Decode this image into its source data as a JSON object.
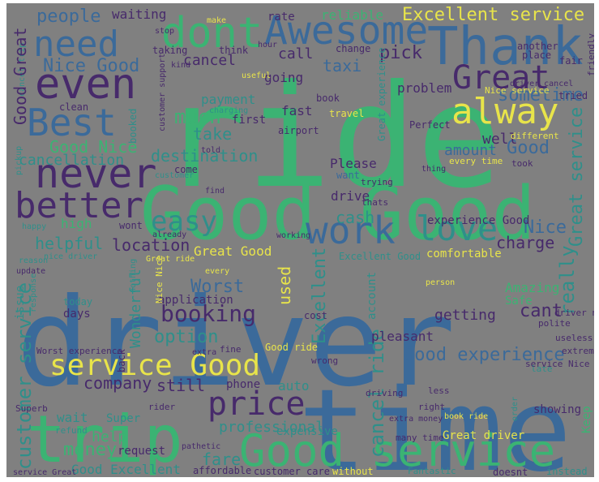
{
  "colors": {
    "background": "#808080",
    "blue": "#3b6a9a",
    "teal": "#2f8f8a",
    "green": "#3bb373",
    "yellow": "#e8e44a",
    "purple": "#472a6b",
    "lime": "#9ad14f",
    "darkblue": "#34507d"
  },
  "words": [
    {
      "text": "driver",
      "c": "blue"
    },
    {
      "text": "time",
      "c": "blue"
    },
    {
      "text": "ride",
      "c": "green"
    },
    {
      "text": "Good Good",
      "c": "green"
    },
    {
      "text": "trip",
      "c": "green"
    },
    {
      "text": "Good service",
      "c": "green"
    },
    {
      "text": "Thank",
      "c": "blue"
    },
    {
      "text": "Awesome",
      "c": "blue"
    },
    {
      "text": "dont",
      "c": "green"
    },
    {
      "text": "need",
      "c": "blue"
    },
    {
      "text": "even",
      "c": "purple"
    },
    {
      "text": "Best",
      "c": "blue"
    },
    {
      "text": "never",
      "c": "purple"
    },
    {
      "text": "better",
      "c": "purple"
    },
    {
      "text": "alway",
      "c": "yellow"
    },
    {
      "text": "Great",
      "c": "purple"
    },
    {
      "text": "work",
      "c": "blue"
    },
    {
      "text": "love",
      "c": "teal"
    },
    {
      "text": "easy",
      "c": "teal"
    },
    {
      "text": "service Good",
      "c": "yellow"
    },
    {
      "text": "price",
      "c": "purple"
    },
    {
      "text": "people",
      "c": "blue"
    },
    {
      "text": "waiting",
      "c": "purple"
    },
    {
      "text": "rate",
      "c": "purple"
    },
    {
      "text": "reliable",
      "c": "green"
    },
    {
      "text": "Excellent service",
      "c": "yellow"
    },
    {
      "text": "Nice Good",
      "c": "blue"
    },
    {
      "text": "cancel",
      "c": "purple"
    },
    {
      "text": "taxi",
      "c": "blue"
    },
    {
      "text": "pick",
      "c": "purple"
    },
    {
      "text": "call",
      "c": "purple"
    },
    {
      "text": "going",
      "c": "purple"
    },
    {
      "text": "problem",
      "c": "purple"
    },
    {
      "text": "sometime",
      "c": "blue"
    },
    {
      "text": "Good Nice",
      "c": "green"
    },
    {
      "text": "cancellation",
      "c": "teal"
    },
    {
      "text": "much",
      "c": "green"
    },
    {
      "text": "take",
      "c": "teal"
    },
    {
      "text": "destination",
      "c": "teal"
    },
    {
      "text": "amount",
      "c": "blue"
    },
    {
      "text": "Good",
      "c": "blue"
    },
    {
      "text": "Great service",
      "c": "teal"
    },
    {
      "text": "Please",
      "c": "purple"
    },
    {
      "text": "drive",
      "c": "purple"
    },
    {
      "text": "cash",
      "c": "teal"
    },
    {
      "text": "Nice",
      "c": "blue"
    },
    {
      "text": "charge",
      "c": "purple"
    },
    {
      "text": "helpful",
      "c": "teal"
    },
    {
      "text": "location",
      "c": "purple"
    },
    {
      "text": "Great Good",
      "c": "yellow"
    },
    {
      "text": "really",
      "c": "teal"
    },
    {
      "text": "used",
      "c": "yellow"
    },
    {
      "text": "Worst",
      "c": "blue"
    },
    {
      "text": "booking",
      "c": "purple"
    },
    {
      "text": "cant",
      "c": "purple"
    },
    {
      "text": "getting",
      "c": "purple"
    },
    {
      "text": "option",
      "c": "teal"
    },
    {
      "text": "Good experience",
      "c": "blue"
    },
    {
      "text": "customer service",
      "c": "teal"
    },
    {
      "text": "company",
      "c": "purple"
    },
    {
      "text": "still",
      "c": "purple"
    },
    {
      "text": "cancel ride",
      "c": "teal"
    },
    {
      "text": "professional",
      "c": "teal"
    },
    {
      "text": "money",
      "c": "green"
    },
    {
      "text": "fare",
      "c": "teal"
    },
    {
      "text": "help",
      "c": "green"
    },
    {
      "text": "wait",
      "c": "teal"
    },
    {
      "text": "Good Excellent",
      "c": "teal"
    },
    {
      "text": "Excellent",
      "c": "teal"
    },
    {
      "text": "fast",
      "c": "purple"
    },
    {
      "text": "payment",
      "c": "teal"
    },
    {
      "text": "well",
      "c": "purple"
    },
    {
      "text": "high",
      "c": "green"
    },
    {
      "text": "Amazing",
      "c": "green"
    },
    {
      "text": "Wonderful",
      "c": "teal"
    },
    {
      "text": "application",
      "c": "purple"
    },
    {
      "text": "days",
      "c": "purple"
    },
    {
      "text": "today",
      "c": "teal"
    },
    {
      "text": "issue",
      "c": "teal"
    },
    {
      "text": "experience Good",
      "c": "purple"
    },
    {
      "text": "comfortable",
      "c": "yellow"
    },
    {
      "text": "account",
      "c": "teal"
    },
    {
      "text": "pleasant",
      "c": "purple"
    },
    {
      "text": "phone",
      "c": "purple"
    },
    {
      "text": "auto",
      "c": "teal"
    },
    {
      "text": "Super",
      "c": "teal"
    },
    {
      "text": "showing",
      "c": "purple"
    },
    {
      "text": "Keep",
      "c": "green"
    },
    {
      "text": "Great driver",
      "c": "yellow"
    },
    {
      "text": "Good ride",
      "c": "yellow"
    },
    {
      "text": "request",
      "c": "purple"
    },
    {
      "text": "expensive",
      "c": "teal"
    },
    {
      "text": "customer care",
      "c": "purple"
    },
    {
      "text": "without",
      "c": "yellow"
    },
    {
      "text": "affordable",
      "c": "purple"
    },
    {
      "text": "Fantastic",
      "c": "teal"
    },
    {
      "text": "doesnt",
      "c": "purple"
    },
    {
      "text": "instead",
      "c": "teal"
    },
    {
      "text": "late",
      "c": "teal"
    },
    {
      "text": "service Nice",
      "c": "purple"
    },
    {
      "text": "extremely",
      "c": "purple"
    },
    {
      "text": "useless",
      "c": "purple"
    },
    {
      "text": "polite",
      "c": "purple"
    },
    {
      "text": "driver nice",
      "c": "purple"
    },
    {
      "text": "Safe",
      "c": "green"
    },
    {
      "text": "Perfect",
      "c": "purple"
    },
    {
      "text": "every time",
      "c": "yellow"
    },
    {
      "text": "different",
      "c": "yellow"
    },
    {
      "text": "took",
      "c": "purple"
    },
    {
      "text": "thing",
      "c": "purple"
    },
    {
      "text": "trying",
      "c": "purple"
    },
    {
      "text": "thats",
      "c": "purple"
    },
    {
      "text": "want",
      "c": "blue"
    },
    {
      "text": "airport",
      "c": "purple"
    },
    {
      "text": "travel",
      "c": "yellow"
    },
    {
      "text": "first",
      "c": "purple"
    },
    {
      "text": "book",
      "c": "purple"
    },
    {
      "text": "Nice service",
      "c": "yellow"
    },
    {
      "text": "driver cancel",
      "c": "purple"
    },
    {
      "text": "tried",
      "c": "purple"
    },
    {
      "text": "fair",
      "c": "purple"
    },
    {
      "text": "place",
      "c": "purple"
    },
    {
      "text": "another",
      "c": "purple"
    },
    {
      "text": "change",
      "c": "purple"
    },
    {
      "text": "friendly",
      "c": "purple"
    },
    {
      "text": "Great experience",
      "c": "teal"
    },
    {
      "text": "Superb",
      "c": "purple"
    },
    {
      "text": "refund",
      "c": "teal"
    },
    {
      "text": "service Great",
      "c": "purple"
    },
    {
      "text": "book ride",
      "c": "yellow"
    },
    {
      "text": "extra money",
      "c": "purple"
    },
    {
      "text": "driving",
      "c": "purple"
    },
    {
      "text": "less",
      "c": "purple"
    },
    {
      "text": "right",
      "c": "purple"
    },
    {
      "text": "order",
      "c": "teal"
    },
    {
      "text": "many time",
      "c": "purple"
    },
    {
      "text": "pathetic",
      "c": "purple"
    },
    {
      "text": "rider",
      "c": "purple"
    },
    {
      "text": "fine",
      "c": "purple"
    },
    {
      "text": "extra",
      "c": "purple"
    },
    {
      "text": "Worst experience",
      "c": "purple"
    },
    {
      "text": "wrong",
      "c": "purple"
    },
    {
      "text": "cost",
      "c": "purple"
    },
    {
      "text": "person",
      "c": "yellow"
    },
    {
      "text": "every",
      "c": "yellow"
    },
    {
      "text": "nice driver",
      "c": "teal"
    },
    {
      "text": "reason",
      "c": "teal"
    },
    {
      "text": "update",
      "c": "purple"
    },
    {
      "text": "response",
      "c": "teal"
    },
    {
      "text": "back",
      "c": "purple"
    },
    {
      "text": "Nice Nice",
      "c": "yellow"
    },
    {
      "text": "nothing",
      "c": "teal"
    },
    {
      "text": "Great ride",
      "c": "yellow"
    },
    {
      "text": "happy",
      "c": "teal"
    },
    {
      "text": "wont",
      "c": "purple"
    },
    {
      "text": "already",
      "c": "purple"
    },
    {
      "text": "working",
      "c": "purple"
    },
    {
      "text": "Excellent Good",
      "c": "teal"
    },
    {
      "text": "told",
      "c": "purple"
    },
    {
      "text": "come",
      "c": "purple"
    },
    {
      "text": "customer",
      "c": "teal"
    },
    {
      "text": "find",
      "c": "purple"
    },
    {
      "text": "charging",
      "c": "teal"
    },
    {
      "text": "customer support",
      "c": "purple"
    },
    {
      "text": "booked",
      "c": "teal"
    },
    {
      "text": "clean",
      "c": "purple"
    },
    {
      "text": "cancel trip",
      "c": "teal"
    },
    {
      "text": "pickup",
      "c": "teal"
    },
    {
      "text": "taking",
      "c": "purple"
    },
    {
      "text": "kind",
      "c": "purple"
    },
    {
      "text": "think",
      "c": "purple"
    },
    {
      "text": "stop",
      "c": "purple"
    },
    {
      "text": "make",
      "c": "yellow"
    },
    {
      "text": "hour",
      "c": "purple"
    },
    {
      "text": "useful",
      "c": "yellow"
    },
    {
      "text": "Good Great",
      "c": "purple"
    }
  ]
}
